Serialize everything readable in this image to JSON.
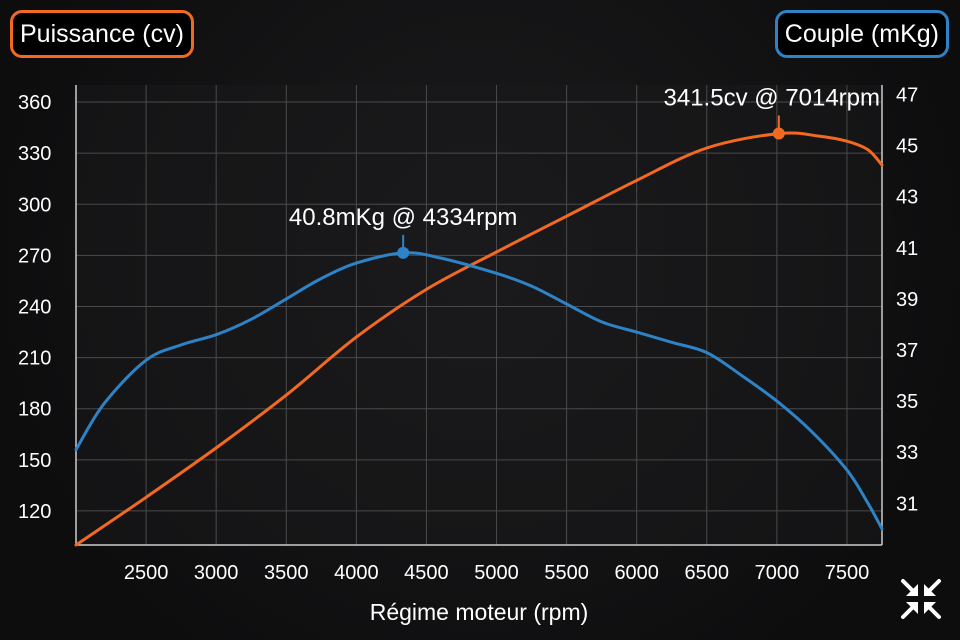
{
  "colors": {
    "power": "#f26a21",
    "torque": "#2e83c6",
    "grid": "#4a4a4d",
    "axis": "#cccccc"
  },
  "legend": {
    "power_label": "Puissance (cv)",
    "torque_label": "Couple (mKg)"
  },
  "controls": {
    "collapse_icon": "collapse-arrows-icon"
  },
  "chart_data": {
    "type": "line",
    "xlabel": "Régime moteur (rpm)",
    "x_ticks": [
      2500,
      3000,
      3500,
      4000,
      4500,
      5000,
      5500,
      6000,
      6500,
      7000,
      7500
    ],
    "y_left_ticks": [
      120,
      150,
      180,
      210,
      240,
      270,
      300,
      330,
      360
    ],
    "y_right_ticks": [
      31,
      33,
      35,
      37,
      39,
      41,
      43,
      45,
      47
    ],
    "xlim": [
      2000,
      7750
    ],
    "ylim_left": [
      100,
      370
    ],
    "ylim_right": [
      29.37,
      47.37
    ],
    "grid": true,
    "series": [
      {
        "name": "Puissance (cv)",
        "axis": "left",
        "color": "#f26a21",
        "x": [
          2000,
          2500,
          3000,
          3500,
          4000,
          4500,
          5000,
          5500,
          6000,
          6500,
          7014,
          7300,
          7500,
          7650,
          7750
        ],
        "y": [
          100,
          128,
          157,
          188,
          222,
          250,
          272,
          293,
          314,
          333,
          341.5,
          340,
          337,
          332,
          323
        ]
      },
      {
        "name": "Couple (mKg)",
        "axis": "right",
        "color": "#2e83c6",
        "x": [
          2000,
          2200,
          2500,
          2750,
          3000,
          3250,
          3500,
          3750,
          4000,
          4334,
          4600,
          5000,
          5250,
          5500,
          5750,
          6000,
          6250,
          6500,
          6750,
          7000,
          7250,
          7500,
          7650,
          7750
        ],
        "y": [
          33.1,
          34.9,
          36.6,
          37.2,
          37.6,
          38.2,
          39.0,
          39.8,
          40.4,
          40.8,
          40.6,
          40.0,
          39.5,
          38.8,
          38.1,
          37.7,
          37.3,
          36.9,
          36.0,
          35.0,
          33.8,
          32.3,
          31.0,
          30.0
        ]
      }
    ],
    "annotations": [
      {
        "text": "341.5cv @ 7014rpm",
        "series": "Puissance (cv)",
        "x": 7014,
        "y": 341.5
      },
      {
        "text": "40.8mKg @ 4334rpm",
        "series": "Couple (mKg)",
        "x": 4334,
        "y": 40.8
      }
    ]
  }
}
